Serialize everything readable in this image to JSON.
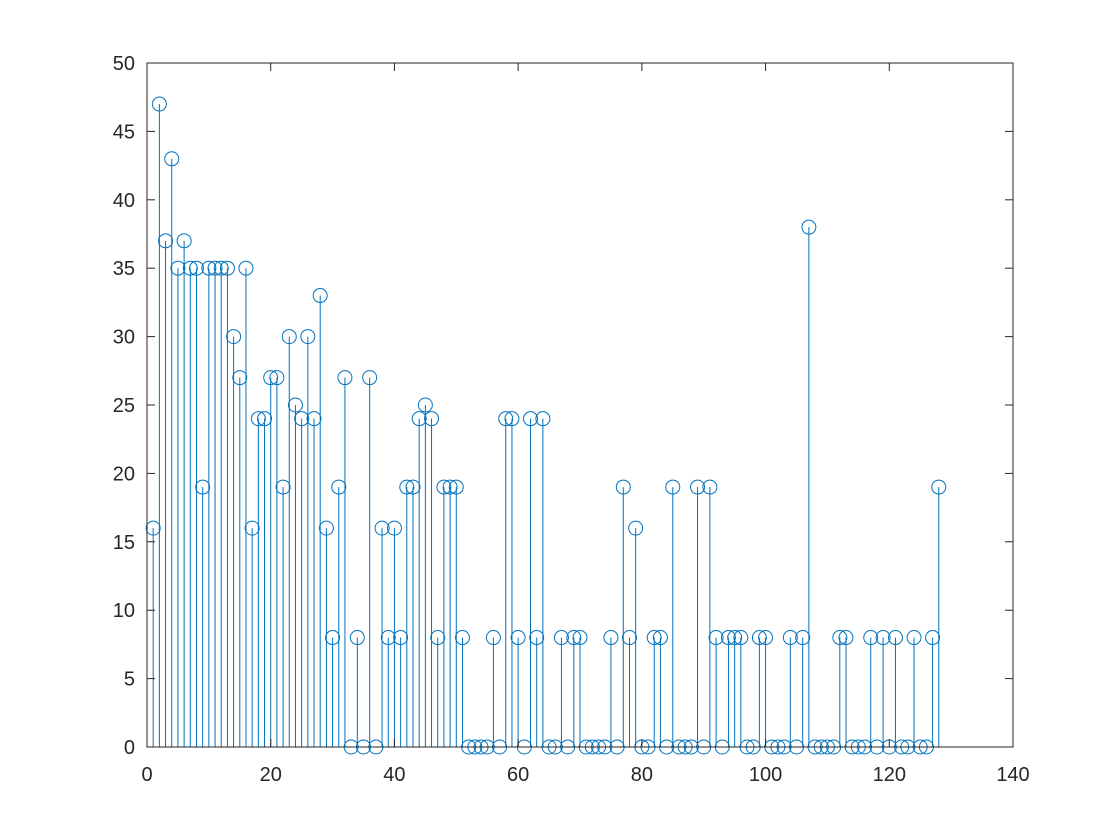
{
  "chart_data": {
    "type": "stem",
    "title": "",
    "xlabel": "",
    "ylabel": "",
    "xlim": [
      0,
      140
    ],
    "ylim": [
      0,
      50
    ],
    "xticks": [
      0,
      20,
      40,
      60,
      80,
      100,
      120,
      140
    ],
    "yticks": [
      0,
      5,
      10,
      15,
      20,
      25,
      30,
      35,
      40,
      45,
      50
    ],
    "grid": false,
    "legend": "none",
    "marker": "circle-open",
    "color": "#0072BD",
    "x": [
      1,
      2,
      3,
      4,
      5,
      6,
      7,
      8,
      9,
      10,
      11,
      12,
      13,
      14,
      15,
      16,
      17,
      18,
      19,
      20,
      21,
      22,
      23,
      24,
      25,
      26,
      27,
      28,
      29,
      30,
      31,
      32,
      33,
      34,
      35,
      36,
      37,
      38,
      39,
      40,
      41,
      42,
      43,
      44,
      45,
      46,
      47,
      48,
      49,
      50,
      51,
      52,
      53,
      54,
      55,
      56,
      57,
      58,
      59,
      60,
      61,
      62,
      63,
      64,
      65,
      66,
      67,
      68,
      69,
      70,
      71,
      72,
      73,
      74,
      75,
      76,
      77,
      78,
      79,
      80,
      81,
      82,
      83,
      84,
      85,
      86,
      87,
      88,
      89,
      90,
      91,
      92,
      93,
      94,
      95,
      96,
      97,
      98,
      99,
      100,
      101,
      102,
      103,
      104,
      105,
      106,
      107,
      108,
      109,
      110,
      111,
      112,
      113,
      114,
      115,
      116,
      117,
      118,
      119,
      120,
      121,
      122,
      123,
      124,
      125,
      126,
      127,
      128
    ],
    "values": [
      16,
      47,
      37,
      43,
      35,
      37,
      35,
      35,
      19,
      35,
      35,
      35,
      35,
      30,
      27,
      35,
      16,
      24,
      24,
      27,
      27,
      19,
      30,
      25,
      24,
      30,
      24,
      33,
      16,
      8,
      19,
      27,
      0,
      8,
      0,
      27,
      0,
      16,
      8,
      16,
      8,
      19,
      19,
      24,
      25,
      24,
      8,
      19,
      19,
      19,
      8,
      0,
      0,
      0,
      0,
      8,
      0,
      24,
      24,
      8,
      0,
      24,
      8,
      24,
      0,
      0,
      8,
      0,
      8,
      8,
      0,
      0,
      0,
      0,
      8,
      0,
      19,
      8,
      16,
      0,
      0,
      8,
      8,
      0,
      19,
      0,
      0,
      0,
      19,
      0,
      19,
      8,
      0,
      8,
      8,
      8,
      0,
      0,
      8,
      8,
      0,
      0,
      0,
      8,
      0,
      8,
      38,
      0,
      0,
      0,
      0,
      8,
      8,
      0,
      0,
      0,
      8,
      0,
      8,
      0,
      8,
      0,
      0,
      8,
      0,
      0,
      8,
      19
    ]
  }
}
